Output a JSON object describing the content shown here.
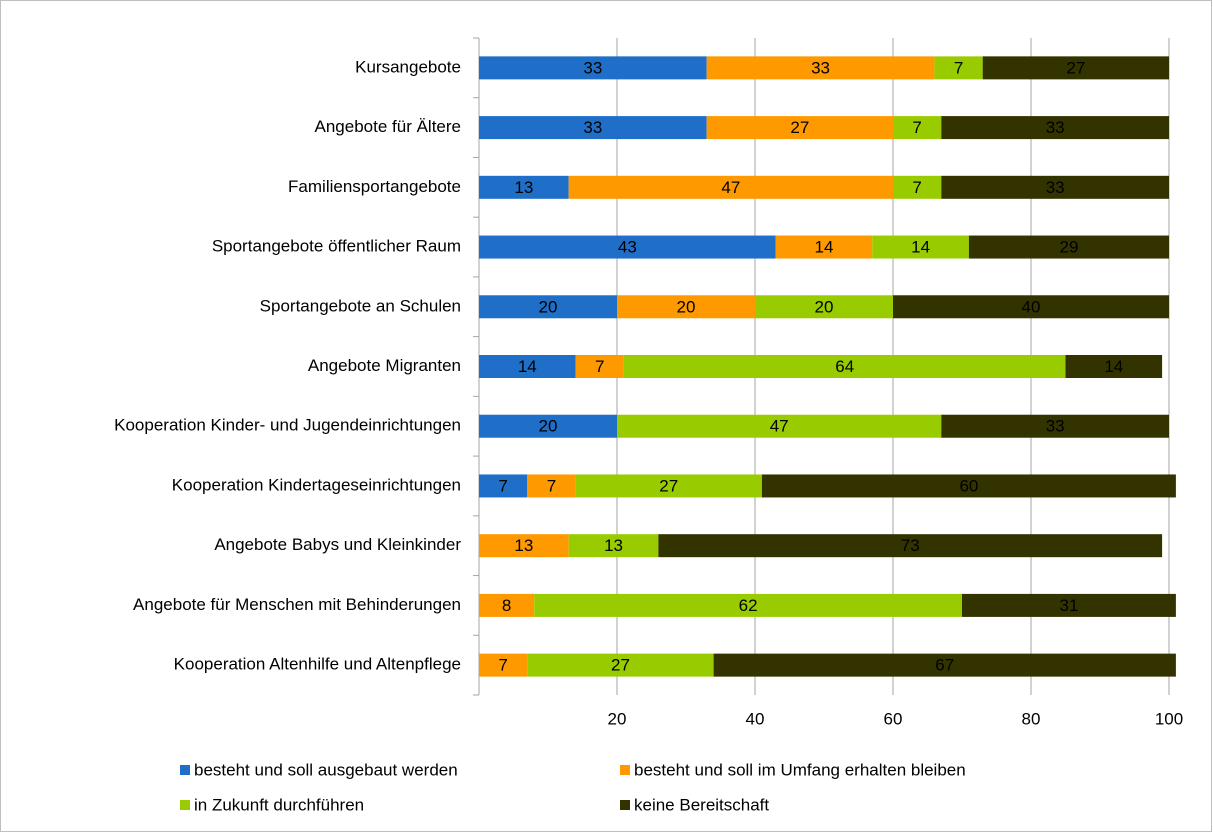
{
  "chart_data": {
    "type": "stacked_barh",
    "categories": [
      "Kursangebote",
      "Angebote für Ältere",
      "Familiensportangebote",
      "Sportangebote öffentlicher Raum",
      "Sportangebote an Schulen",
      "Angebote Migranten",
      "Kooperation Kinder- und Jugendeinrichtungen",
      "Kooperation Kindertageseinrichtungen",
      "Angebote Babys und Kleinkinder",
      "Angebote für Menschen mit Behinderungen",
      "Kooperation Altenhilfe und Altenpflege"
    ],
    "series": [
      {
        "name": "besteht und soll ausgebaut werden",
        "color": "#1f6fc8",
        "values": [
          33,
          33,
          13,
          43,
          20,
          14,
          20,
          7,
          null,
          null,
          null
        ]
      },
      {
        "name": "besteht und soll im Umfang erhalten bleiben",
        "color": "#ff9900",
        "values": [
          33,
          27,
          47,
          14,
          20,
          7,
          null,
          7,
          13,
          8,
          7
        ]
      },
      {
        "name": "in Zukunft durchführen",
        "color": "#99cc00",
        "values": [
          7,
          7,
          7,
          14,
          20,
          64,
          47,
          27,
          13,
          62,
          27
        ]
      },
      {
        "name": "keine Bereitschaft",
        "color": "#333300",
        "values": [
          27,
          33,
          33,
          29,
          40,
          14,
          33,
          60,
          73,
          31,
          67
        ]
      }
    ],
    "xlim": [
      0,
      100
    ],
    "xticks": [
      20,
      40,
      60,
      80,
      100
    ],
    "grid": true
  }
}
